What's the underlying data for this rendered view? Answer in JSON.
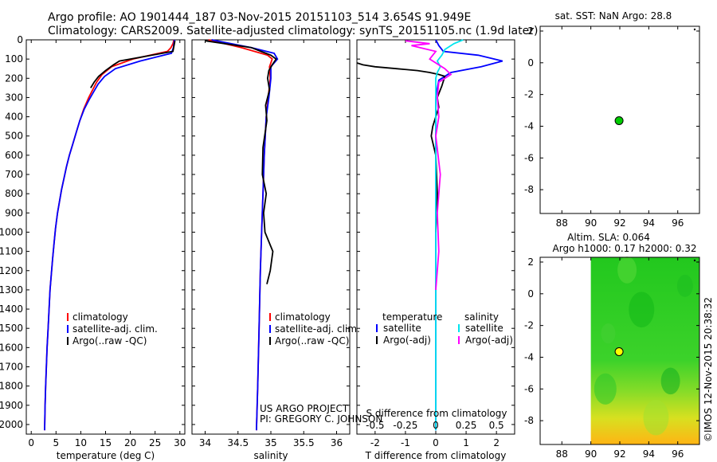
{
  "header": {
    "line1": "Argo profile: AO 1901444_187 03-Nov-2015 20151103_514 3.654S 91.949E",
    "line2": "Climatology: CARS2009. Satellite-adjusted climatology: synTS_20151105.nc (1.9d later)"
  },
  "credit": {
    "project": "US ARGO PROJECT",
    "pi": "PI: GREGORY C. JOHNSON",
    "side": "©IMOS 12-Nov-2015 20:38:32"
  },
  "colors": {
    "climatology": "#ff0000",
    "satellite": "#0000ff",
    "argo": "#000000",
    "sal_satellite": "#00e5ee",
    "sal_argo": "#ff00ff",
    "float_marker": "#00cc00",
    "float_marker_sla": "#ffff00"
  },
  "chart_data": [
    {
      "type": "line",
      "name": "temperature",
      "xlabel": "temperature (deg C)",
      "ylabel": "",
      "xlim": [
        -1,
        31
      ],
      "ylim": [
        2050,
        0
      ],
      "xticks": [
        "0",
        "5",
        "10",
        "15",
        "20",
        "25",
        "30"
      ],
      "xtick_values": [
        0,
        5,
        10,
        15,
        20,
        25,
        30
      ],
      "yticks": [
        "0",
        "100",
        "200",
        "300",
        "400",
        "500",
        "600",
        "700",
        "800",
        "900",
        "1000",
        "1100",
        "1200",
        "1300",
        "1400",
        "1500",
        "1600",
        "1700",
        "1800",
        "1900",
        "2000"
      ],
      "ytick_values": [
        0,
        100,
        200,
        300,
        400,
        500,
        600,
        700,
        800,
        900,
        1000,
        1100,
        1200,
        1300,
        1400,
        1500,
        1600,
        1700,
        1800,
        1900,
        2000
      ],
      "legend": [
        "climatology",
        "satellite-adj. clim.",
        "Argo(..raw -QC)"
      ],
      "series": [
        {
          "name": "climatology",
          "color_key": "climatology",
          "x": [
            28.8,
            28.6,
            28.2,
            27.5,
            20.5,
            16.2,
            14.3,
            13.2,
            12.4,
            11.6,
            10.6,
            9.8,
            9.1,
            8.4,
            7.7,
            7.1,
            6.6,
            6.1,
            5.7,
            5.3,
            4.9,
            4.6,
            4.3,
            4.05,
            3.8,
            3.6,
            3.4,
            3.2,
            3.05,
            2.9,
            2.8,
            2.7
          ],
          "y": [
            0,
            20,
            40,
            60,
            100,
            140,
            180,
            220,
            260,
            300,
            360,
            420,
            480,
            540,
            600,
            660,
            720,
            780,
            840,
            900,
            980,
            1060,
            1140,
            1220,
            1300,
            1400,
            1500,
            1600,
            1700,
            1800,
            1900,
            2030
          ]
        },
        {
          "name": "satellite-adj. clim.",
          "color_key": "satellite",
          "x": [
            28.9,
            28.8,
            28.7,
            28.3,
            22.0,
            17.0,
            14.8,
            13.5,
            12.6,
            11.7,
            10.7,
            9.8,
            9.1,
            8.4,
            7.7,
            7.1,
            6.6,
            6.1,
            5.7,
            5.3,
            4.9,
            4.6,
            4.3,
            4.05,
            3.8,
            3.6,
            3.4,
            3.2,
            3.05,
            2.9,
            2.8,
            2.7
          ],
          "y": [
            0,
            20,
            40,
            70,
            110,
            150,
            190,
            230,
            270,
            310,
            360,
            420,
            480,
            540,
            600,
            660,
            720,
            780,
            840,
            900,
            980,
            1060,
            1140,
            1220,
            1300,
            1400,
            1500,
            1600,
            1700,
            1800,
            1900,
            2030
          ]
        },
        {
          "name": "Argo(..raw -QC)",
          "color_key": "argo",
          "x": [
            29.0,
            28.9,
            28.6,
            17.8,
            16.6,
            15.0,
            13.6,
            12.7,
            12.0
          ],
          "y": [
            5,
            20,
            60,
            110,
            130,
            160,
            190,
            220,
            250
          ]
        }
      ]
    },
    {
      "type": "line",
      "name": "salinity",
      "xlabel": "salinity",
      "xlim": [
        33.8,
        36.2
      ],
      "ylim": [
        2050,
        0
      ],
      "xticks": [
        "34",
        "34.5",
        "35",
        "35.5",
        "36"
      ],
      "xtick_values": [
        34,
        34.5,
        35,
        35.5,
        36
      ],
      "legend": [
        "climatology",
        "satellite-adj. clim.",
        "Argo(..raw -QC)"
      ],
      "series": [
        {
          "name": "climatology",
          "color_key": "climatology",
          "x": [
            34.05,
            34.55,
            34.95,
            35.02,
            34.98,
            34.99,
            34.96,
            34.93,
            34.9,
            34.88,
            34.86,
            34.84,
            34.82,
            34.8,
            34.78
          ],
          "y": [
            0,
            40,
            80,
            100,
            140,
            200,
            300,
            400,
            600,
            800,
            1000,
            1200,
            1500,
            1800,
            2030
          ]
        },
        {
          "name": "satellite-adj. clim.",
          "color_key": "satellite",
          "x": [
            34.1,
            34.7,
            35.05,
            35.1,
            35.0,
            35.0,
            34.97,
            34.93,
            34.9,
            34.88,
            34.86,
            34.84,
            34.82,
            34.8,
            34.78
          ],
          "y": [
            0,
            40,
            70,
            100,
            140,
            200,
            300,
            400,
            600,
            800,
            1000,
            1200,
            1500,
            1800,
            2030
          ]
        },
        {
          "name": "Argo(..raw -QC)",
          "color_key": "argo",
          "x": [
            34.0,
            34.3,
            34.7,
            34.85,
            35.0,
            35.08,
            35.02,
            34.97,
            34.95,
            34.98,
            34.92,
            34.94,
            34.88,
            34.87,
            34.93,
            34.89,
            34.91,
            35.03,
            34.99,
            34.94
          ],
          "y": [
            5,
            20,
            40,
            60,
            80,
            100,
            130,
            160,
            200,
            260,
            340,
            420,
            560,
            700,
            800,
            900,
            1000,
            1100,
            1200,
            1270
          ]
        }
      ]
    },
    {
      "type": "line",
      "name": "difference",
      "xlabel": "T difference from climatology",
      "xlabel_top": "S difference from climatology",
      "xlim": [
        -2.6,
        2.6
      ],
      "ylim": [
        2050,
        0
      ],
      "xticks": [
        "-2",
        "-1",
        "0",
        "1",
        "2"
      ],
      "xtick_values": [
        -2,
        -1,
        0,
        1,
        2
      ],
      "xticks_top": [
        "-0.5",
        "-0.25",
        "0",
        "0.25",
        "0.5"
      ],
      "xtick_top_values": [
        -2,
        -1,
        0,
        1,
        2
      ],
      "legend_titles": [
        "temperature",
        "salinity"
      ],
      "legend": [
        "satellite",
        "Argo(-adj)",
        "satellite",
        "Argo(-adj)"
      ],
      "series": [
        {
          "name": "T satellite",
          "color_key": "satellite",
          "x": [
            0,
            0.1,
            0.25,
            1.4,
            2.2,
            1.5,
            0.5,
            0.1,
            0,
            0,
            0,
            0,
            0
          ],
          "y": [
            0,
            30,
            60,
            80,
            110,
            140,
            170,
            210,
            300,
            600,
            1000,
            1500,
            2030
          ]
        },
        {
          "name": "T Argo(-adj)",
          "color_key": "argo",
          "x": [
            -2.6,
            -2.4,
            -2.0,
            -1.3,
            -0.6,
            -0.2,
            0.1,
            0.3,
            0.2,
            0.05,
            0.1,
            -0.1,
            -0.15,
            0,
            0.05,
            0
          ],
          "y": [
            120,
            130,
            140,
            150,
            160,
            170,
            180,
            190,
            240,
            300,
            350,
            450,
            500,
            600,
            800,
            1000
          ]
        },
        {
          "name": "S satellite",
          "color_key": "sal_satellite",
          "x": [
            0.9,
            0.6,
            0.3,
            0.2,
            0.05,
            0.15,
            0.05,
            0,
            0,
            0,
            0,
            0,
            0
          ],
          "y": [
            0,
            20,
            50,
            80,
            110,
            140,
            170,
            200,
            300,
            600,
            1000,
            1500,
            2030
          ]
        },
        {
          "name": "S Argo(-adj)",
          "color_key": "sal_argo",
          "x": [
            -1.0,
            -0.2,
            -0.8,
            0,
            -0.1,
            -0.2,
            0.3,
            0.5,
            0.1,
            0.05,
            0.1,
            0,
            0.15,
            0.05,
            0.1,
            0
          ],
          "y": [
            5,
            20,
            30,
            60,
            80,
            100,
            150,
            180,
            220,
            300,
            400,
            500,
            700,
            900,
            1100,
            1300
          ]
        }
      ]
    },
    {
      "type": "scatter",
      "name": "sst_map",
      "title": "sat. SST: NaN Argo: 28.8",
      "xlim": [
        86.5,
        97.5
      ],
      "ylim": [
        -9.5,
        2.3
      ],
      "xticks": [
        "88",
        "90",
        "92",
        "94",
        "96"
      ],
      "xtick_values": [
        88,
        90,
        92,
        94,
        96
      ],
      "yticks": [
        "2",
        "0",
        "-2",
        "-4",
        "-6",
        "-8"
      ],
      "ytick_values": [
        2,
        0,
        -2,
        -4,
        -6,
        -8
      ],
      "points": [
        {
          "x": 91.95,
          "y": -3.65
        }
      ]
    },
    {
      "type": "heatmap",
      "name": "sla_map",
      "title_line1": "Altim. SLA: 0.064",
      "title_line2": "Argo h1000: 0.17 h2000: 0.32",
      "xlim": [
        86.5,
        97.5
      ],
      "ylim": [
        -9.5,
        2.3
      ],
      "xticks": [
        "88",
        "90",
        "92",
        "94",
        "96"
      ],
      "xtick_values": [
        88,
        90,
        92,
        94,
        96
      ],
      "yticks": [
        "2",
        "0",
        "-2",
        "-4",
        "-6",
        "-8"
      ],
      "ytick_values": [
        2,
        0,
        -2,
        -4,
        -6,
        -8
      ],
      "field_xlim": [
        90,
        97.5
      ],
      "points": [
        {
          "x": 91.95,
          "y": -3.65
        }
      ]
    }
  ]
}
